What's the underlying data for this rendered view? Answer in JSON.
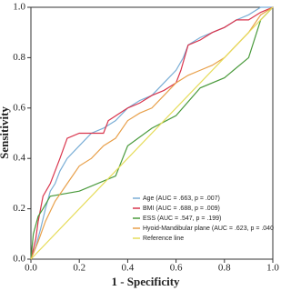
{
  "chart_data": {
    "type": "line",
    "xlabel": "1 - Specificity",
    "ylabel": "Sensitivity",
    "xlim": [
      0,
      1
    ],
    "ylim": [
      0,
      1
    ],
    "xticks": [
      {
        "value": 0,
        "label": "0.0"
      },
      {
        "value": 0.2,
        "label": "0.2"
      },
      {
        "value": 0.4,
        "label": "0.4"
      },
      {
        "value": 0.6,
        "label": "0.6"
      },
      {
        "value": 0.8,
        "label": "0.8"
      },
      {
        "value": 1,
        "label": "1.0"
      }
    ],
    "yticks": [
      {
        "value": 0,
        "label": "0.0"
      },
      {
        "value": 0.2,
        "label": "0.2"
      },
      {
        "value": 0.4,
        "label": "0.4"
      },
      {
        "value": 0.6,
        "label": "0.6"
      },
      {
        "value": 0.8,
        "label": "0.8"
      },
      {
        "value": 1,
        "label": "1.0"
      }
    ],
    "legend": "lower-right",
    "series": [
      {
        "name": "Age (AUC = .663, p = .007)",
        "color": "#7aaed6",
        "x": [
          0,
          0.02,
          0.04,
          0.06,
          0.08,
          0.1,
          0.12,
          0.15,
          0.2,
          0.25,
          0.3,
          0.35,
          0.4,
          0.45,
          0.5,
          0.55,
          0.6,
          0.63,
          0.65,
          0.7,
          0.75,
          0.8,
          0.85,
          0.9,
          0.95,
          1
        ],
        "values": [
          0,
          0.05,
          0.12,
          0.2,
          0.27,
          0.3,
          0.35,
          0.4,
          0.45,
          0.5,
          0.52,
          0.55,
          0.6,
          0.63,
          0.65,
          0.7,
          0.75,
          0.8,
          0.85,
          0.88,
          0.9,
          0.92,
          0.95,
          0.97,
          1,
          1
        ]
      },
      {
        "name": "BMI (AUC = .688, p = .009)",
        "color": "#d9354d",
        "x": [
          0,
          0.02,
          0.03,
          0.05,
          0.08,
          0.1,
          0.12,
          0.15,
          0.2,
          0.3,
          0.32,
          0.4,
          0.45,
          0.5,
          0.55,
          0.6,
          0.62,
          0.65,
          0.7,
          0.75,
          0.8,
          0.85,
          0.9,
          0.95,
          1
        ],
        "values": [
          0,
          0.08,
          0.15,
          0.25,
          0.3,
          0.35,
          0.4,
          0.48,
          0.5,
          0.5,
          0.55,
          0.6,
          0.62,
          0.65,
          0.67,
          0.7,
          0.75,
          0.85,
          0.87,
          0.9,
          0.92,
          0.95,
          0.95,
          0.98,
          1
        ]
      },
      {
        "name": "ESS (AUC = .547, p = .199)",
        "color": "#4a9a3c",
        "x": [
          0,
          0.01,
          0.03,
          0.05,
          0.08,
          0.2,
          0.35,
          0.4,
          0.5,
          0.6,
          0.7,
          0.8,
          0.9,
          0.95,
          1
        ],
        "values": [
          0,
          0.1,
          0.17,
          0.2,
          0.25,
          0.27,
          0.33,
          0.45,
          0.52,
          0.57,
          0.68,
          0.72,
          0.8,
          0.95,
          1
        ]
      },
      {
        "name": "Hyoid-Mandibular plane (AUC = .623, p = .040",
        "color": "#e8a04a",
        "x": [
          0,
          0.03,
          0.06,
          0.1,
          0.15,
          0.2,
          0.25,
          0.3,
          0.35,
          0.4,
          0.45,
          0.5,
          0.55,
          0.6,
          0.65,
          0.7,
          0.75,
          0.8,
          0.85,
          0.9,
          0.95,
          1
        ],
        "values": [
          0,
          0.07,
          0.15,
          0.23,
          0.3,
          0.37,
          0.4,
          0.45,
          0.48,
          0.55,
          0.58,
          0.6,
          0.65,
          0.7,
          0.73,
          0.75,
          0.77,
          0.8,
          0.85,
          0.9,
          0.97,
          1
        ]
      },
      {
        "name": "Reference line",
        "color": "#e6dc5a",
        "x": [
          0,
          1
        ],
        "values": [
          0,
          1
        ]
      }
    ]
  }
}
